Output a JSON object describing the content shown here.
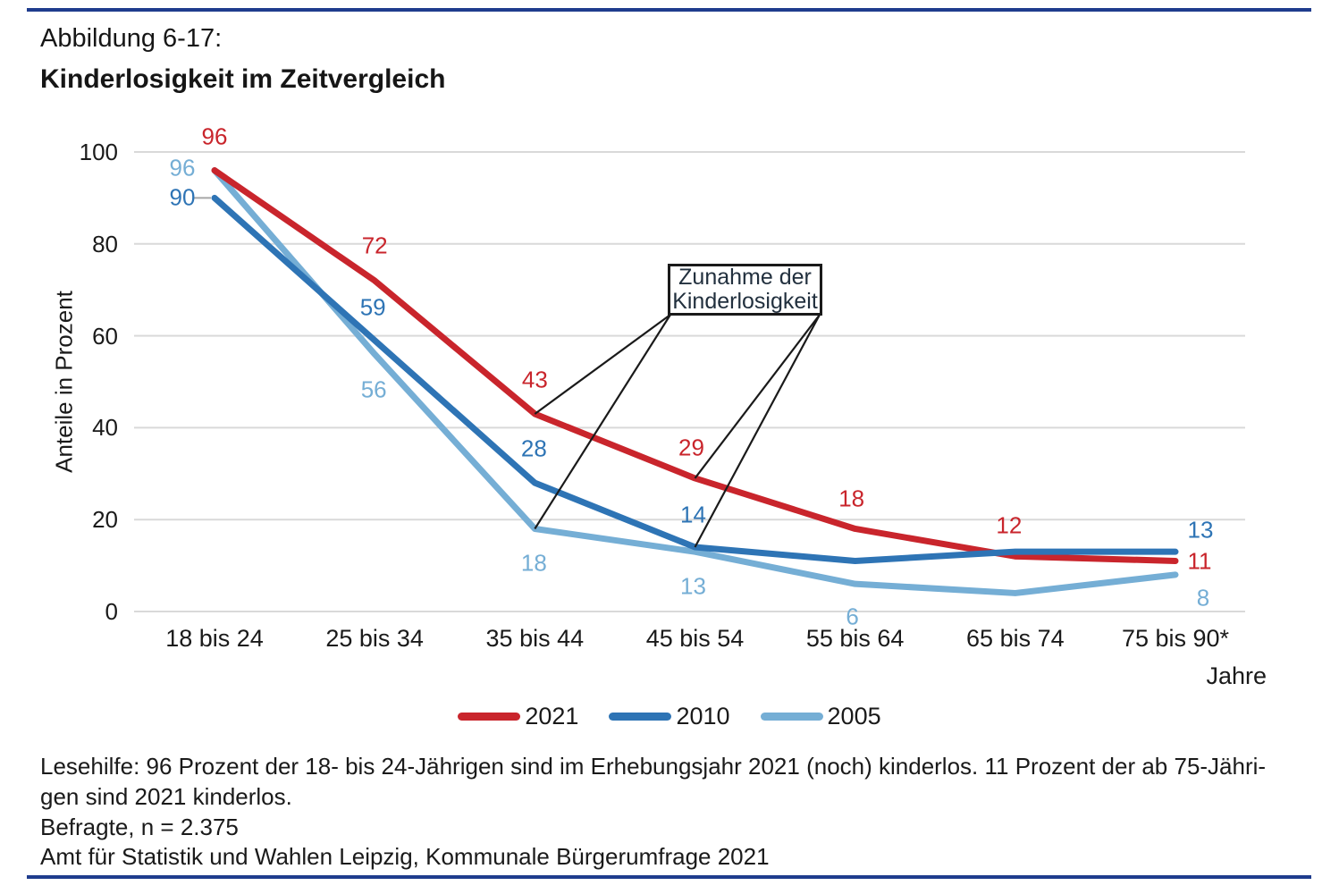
{
  "header": {
    "figure_label": "Abbildung 6-17:",
    "title": "Kinderlosigkeit im Zeitvergleich"
  },
  "colors": {
    "rule_navy": "#1f3c8d",
    "grid_gray": "#d9d9d9",
    "leader_gray": "#a6a6a6",
    "annotation_black": "#1a1a1a"
  },
  "chart_data": {
    "type": "line",
    "categories": [
      "18 bis 24",
      "25 bis 34",
      "35 bis 44",
      "45 bis 54",
      "55 bis 64",
      "65 bis 74",
      "75 bis 90*"
    ],
    "x_axis_unit": "Jahre",
    "ylabel": "Anteile in Prozent",
    "ylim": [
      0,
      100
    ],
    "yticks": [
      0,
      20,
      40,
      60,
      80,
      100
    ],
    "grid": "horizontal",
    "legend_position": "bottom",
    "series": [
      {
        "name": "2021",
        "color": "#c9252c",
        "values": [
          96,
          72,
          43,
          29,
          18,
          12,
          11
        ],
        "point_labels": [
          "96",
          "72",
          "43",
          "29",
          "18",
          "12",
          "11"
        ],
        "label_offsets": [
          [
            0,
            -38
          ],
          [
            0,
            -39
          ],
          [
            0,
            -38
          ],
          [
            -4,
            -34
          ],
          [
            -4,
            -33
          ],
          [
            -7,
            -34
          ],
          [
            27,
            1
          ]
        ]
      },
      {
        "name": "2010",
        "color": "#2e74b5",
        "values": [
          90,
          59,
          28,
          14,
          11,
          13,
          13
        ],
        "point_labels": [
          "90",
          "59",
          "28",
          "14",
          null,
          null,
          "13"
        ],
        "label_offsets": [
          [
            -36,
            0
          ],
          [
            -2,
            -37
          ],
          [
            -1,
            -38
          ],
          [
            -2,
            -36
          ],
          null,
          null,
          [
            28,
            -24
          ]
        ]
      },
      {
        "name": "2005",
        "color": "#75aed5",
        "values": [
          96,
          56,
          18,
          13,
          6,
          4,
          8
        ],
        "point_labels": [
          "96",
          "56",
          "18",
          "13",
          "6",
          null,
          "8"
        ],
        "label_offsets": [
          [
            -36,
            -3
          ],
          [
            -1,
            40
          ],
          [
            -1,
            39
          ],
          [
            -2,
            39
          ],
          [
            -3,
            37
          ],
          null,
          [
            31,
            26
          ]
        ]
      }
    ],
    "annotation": {
      "text": "Zunahme der Kinderlosigkeit",
      "targets_left": [
        {
          "series": 0,
          "index": 2
        },
        {
          "series": 2,
          "index": 2
        }
      ],
      "targets_right": [
        {
          "series": 0,
          "index": 3
        },
        {
          "series": 1,
          "index": 3
        }
      ]
    },
    "label_leader": {
      "series": 1,
      "index": 0
    }
  },
  "footer": {
    "lesehilfe_line1": "Lesehilfe: 96 Prozent der 18- bis 24-Jährigen sind im Erhebungsjahr 2021 (noch) kinderlos. 11 Prozent der ab 75-Jähri-",
    "lesehilfe_line2": "gen sind 2021 kinderlos.",
    "befragte": "Befragte, n = 2.375",
    "source": "Amt für Statistik und Wahlen Leipzig, Kommunale Bürgerumfrage 2021"
  }
}
